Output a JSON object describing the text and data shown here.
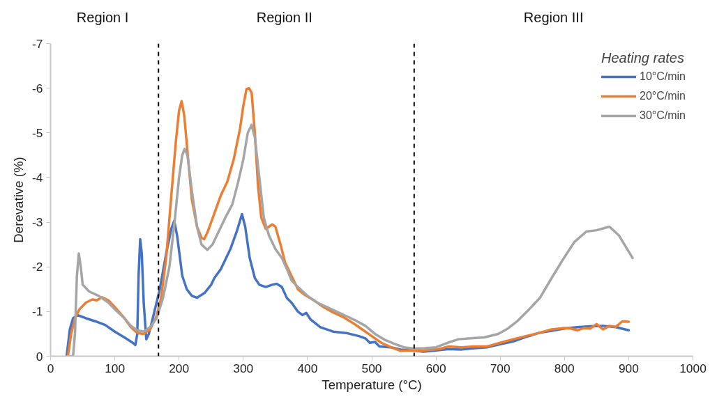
{
  "chart_data": {
    "type": "line",
    "xlabel": "Temperature (°C)",
    "ylabel": "Derevative (%)",
    "legend_title": "Heating rates",
    "legend": "top right",
    "grid": false,
    "line_style": "solid",
    "xlim": [
      0,
      1000
    ],
    "xticks": [
      0,
      100,
      200,
      300,
      400,
      500,
      600,
      700,
      800,
      900,
      1000
    ],
    "ylim": [
      0,
      -7
    ],
    "yticks": [
      0,
      -1,
      -2,
      -3,
      -4,
      -5,
      -6,
      -7
    ],
    "annotations": [
      "Region  I",
      "Region  II",
      "Region III"
    ],
    "ref_lines": [
      {
        "axis": "x",
        "value": 168,
        "label": null,
        "color": "#000000",
        "line_style": "dashed"
      },
      {
        "axis": "x",
        "value": 566,
        "label": null,
        "color": "#000000",
        "line_style": "dashed"
      }
    ],
    "series": [
      {
        "name": "10°C/min",
        "color": "#4472c4",
        "x": [
          25,
          30,
          35,
          42,
          55,
          70,
          85,
          100,
          115,
          128,
          132,
          135,
          137,
          139.5,
          142,
          145,
          149,
          153,
          160,
          170,
          180,
          188,
          192.5,
          197,
          205,
          212,
          220,
          228,
          240,
          250,
          255,
          265,
          280,
          290,
          298,
          303,
          310,
          318,
          325,
          335,
          345,
          352,
          360,
          368,
          375,
          385,
          392,
          398,
          405,
          420,
          440,
          460,
          480,
          490,
          497,
          505,
          512,
          530,
          545,
          565,
          580,
          600,
          620,
          640,
          660,
          680,
          700,
          720,
          740,
          760,
          780,
          800,
          820,
          840,
          860,
          880,
          900
        ],
        "values": [
          0,
          -0.6,
          -0.85,
          -0.92,
          -0.85,
          -0.78,
          -0.7,
          -0.55,
          -0.42,
          -0.3,
          -0.25,
          -0.5,
          -1.8,
          -2.62,
          -2.3,
          -1.2,
          -0.38,
          -0.5,
          -0.9,
          -1.5,
          -2.3,
          -2.85,
          -3.03,
          -2.7,
          -1.8,
          -1.5,
          -1.35,
          -1.31,
          -1.42,
          -1.6,
          -1.75,
          -1.95,
          -2.4,
          -2.8,
          -3.18,
          -2.9,
          -2.2,
          -1.75,
          -1.6,
          -1.55,
          -1.6,
          -1.62,
          -1.55,
          -1.3,
          -1.2,
          -1.0,
          -0.92,
          -0.97,
          -0.82,
          -0.65,
          -0.55,
          -0.52,
          -0.45,
          -0.4,
          -0.3,
          -0.32,
          -0.22,
          -0.2,
          -0.15,
          -0.13,
          -0.1,
          -0.13,
          -0.16,
          -0.15,
          -0.18,
          -0.2,
          -0.27,
          -0.33,
          -0.43,
          -0.52,
          -0.57,
          -0.62,
          -0.65,
          -0.67,
          -0.68,
          -0.65,
          -0.58
        ]
      },
      {
        "name": "20°C/min",
        "color": "#ed7d31",
        "x": [
          27,
          32,
          38,
          45,
          55,
          65,
          72,
          80,
          90,
          100,
          115,
          125,
          135,
          145,
          155,
          165,
          172,
          180,
          188,
          195,
          200,
          204,
          208,
          213,
          220,
          228,
          235,
          239,
          245,
          255,
          265,
          275,
          285,
          295,
          300,
          305,
          309,
          313,
          318,
          323,
          328,
          335,
          345,
          350,
          358,
          365,
          375,
          385,
          395,
          410,
          425,
          440,
          455,
          470,
          485,
          500,
          515,
          530,
          545,
          560,
          575,
          590,
          605,
          620,
          640,
          660,
          680,
          700,
          720,
          740,
          760,
          780,
          800,
          810,
          820,
          830,
          840,
          850,
          860,
          870,
          880,
          890,
          900
        ],
        "values": [
          0,
          -0.5,
          -0.85,
          -1.05,
          -1.2,
          -1.27,
          -1.25,
          -1.32,
          -1.25,
          -1.1,
          -0.85,
          -0.65,
          -0.52,
          -0.5,
          -0.6,
          -0.9,
          -1.3,
          -2.2,
          -3.6,
          -4.8,
          -5.5,
          -5.71,
          -5.4,
          -4.6,
          -3.5,
          -2.9,
          -2.65,
          -2.62,
          -2.8,
          -3.2,
          -3.6,
          -3.9,
          -4.4,
          -5.1,
          -5.6,
          -5.98,
          -6.0,
          -5.9,
          -5.0,
          -3.8,
          -3.1,
          -2.85,
          -2.95,
          -2.9,
          -2.5,
          -2.1,
          -1.8,
          -1.5,
          -1.38,
          -1.25,
          -1.1,
          -0.98,
          -0.88,
          -0.75,
          -0.6,
          -0.45,
          -0.3,
          -0.2,
          -0.12,
          -0.13,
          -0.12,
          -0.14,
          -0.16,
          -0.22,
          -0.2,
          -0.22,
          -0.22,
          -0.3,
          -0.38,
          -0.45,
          -0.52,
          -0.6,
          -0.63,
          -0.62,
          -0.58,
          -0.63,
          -0.62,
          -0.72,
          -0.6,
          -0.68,
          -0.66,
          -0.78,
          -0.77
        ]
      },
      {
        "name": "30°C/min",
        "color": "#a5a5a5",
        "x": [
          27,
          35,
          38,
          41,
          44,
          47,
          50,
          60,
          75,
          90,
          100,
          115,
          125,
          135,
          145,
          155,
          165,
          175,
          185,
          193,
          200,
          205,
          208.7,
          213,
          220,
          228,
          235,
          244,
          252,
          262,
          272,
          283,
          292,
          300,
          307,
          313,
          318,
          325,
          332,
          340,
          350,
          360,
          368,
          375,
          385,
          400,
          415,
          430,
          445,
          460,
          475,
          490,
          505,
          520,
          535,
          550,
          565,
          582,
          600,
          618,
          635,
          654,
          675,
          697,
          712,
          727,
          745,
          762,
          780,
          797,
          815,
          834,
          850,
          870,
          885,
          906
        ],
        "values": [
          0,
          0,
          -0.5,
          -1.8,
          -2.3,
          -2.0,
          -1.6,
          -1.45,
          -1.35,
          -1.2,
          -1.05,
          -0.85,
          -0.68,
          -0.58,
          -0.55,
          -0.65,
          -0.85,
          -1.3,
          -2.0,
          -3.0,
          -4.0,
          -4.5,
          -4.64,
          -4.5,
          -3.7,
          -2.9,
          -2.5,
          -2.38,
          -2.5,
          -2.8,
          -3.1,
          -3.4,
          -3.9,
          -4.4,
          -5.0,
          -5.18,
          -4.9,
          -4.0,
          -3.1,
          -2.7,
          -2.4,
          -2.2,
          -1.95,
          -1.7,
          -1.55,
          -1.35,
          -1.2,
          -1.1,
          -1.0,
          -0.9,
          -0.8,
          -0.68,
          -0.5,
          -0.37,
          -0.28,
          -0.2,
          -0.17,
          -0.18,
          -0.2,
          -0.3,
          -0.38,
          -0.4,
          -0.42,
          -0.5,
          -0.62,
          -0.79,
          -1.05,
          -1.31,
          -1.75,
          -2.15,
          -2.55,
          -2.79,
          -2.82,
          -2.9,
          -2.7,
          -2.2
        ]
      }
    ]
  }
}
